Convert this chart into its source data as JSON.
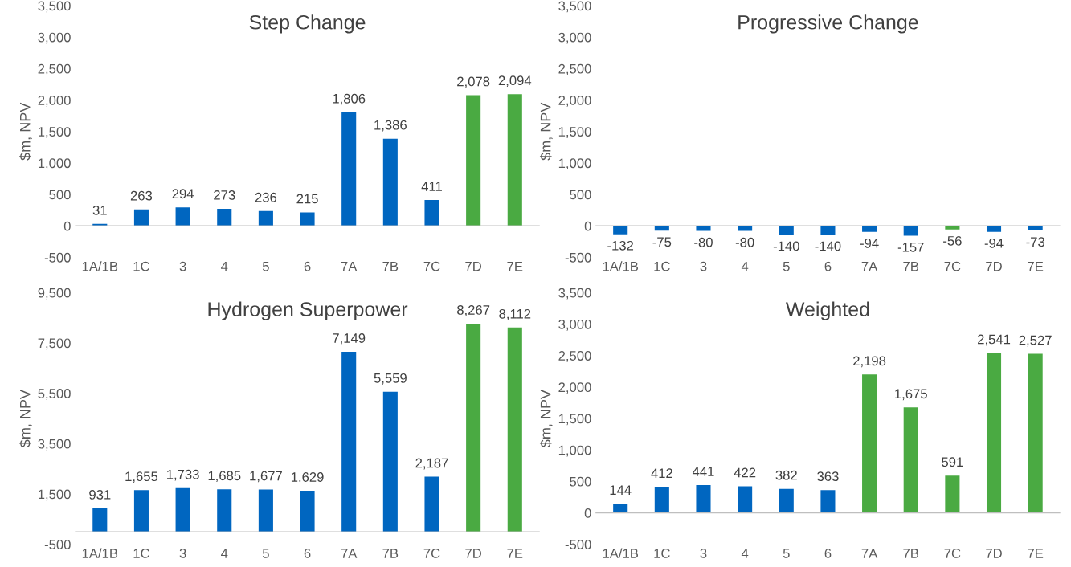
{
  "chart_data": [
    {
      "type": "bar",
      "title": "Step Change",
      "ylabel": "$m, NPV",
      "categories": [
        "1A/1B",
        "1C",
        "3",
        "4",
        "5",
        "6",
        "7A",
        "7B",
        "7C",
        "7D",
        "7E"
      ],
      "values": [
        31,
        263,
        294,
        273,
        236,
        215,
        1806,
        1386,
        411,
        2078,
        2094
      ],
      "colors": [
        "#0066c0",
        "#0066c0",
        "#0066c0",
        "#0066c0",
        "#0066c0",
        "#0066c0",
        "#0066c0",
        "#0066c0",
        "#0066c0",
        "#4aaa42",
        "#4aaa42"
      ],
      "value_labels": [
        "31",
        "263",
        "294",
        "273",
        "236",
        "215",
        "1,806",
        "1,386",
        "411",
        "2,078",
        "2,094"
      ],
      "ylim": [
        -500,
        3500
      ],
      "yticks": [
        {
          "value": -500,
          "label": "-500"
        },
        0,
        500,
        {
          "value": 1000,
          "label": "1,000"
        },
        {
          "value": 1500,
          "label": "1,500"
        },
        {
          "value": 2000,
          "label": "2,000"
        },
        {
          "value": 2500,
          "label": "2,500"
        },
        {
          "value": 3000,
          "label": "3,000"
        },
        {
          "value": 3500,
          "label": "3,500"
        }
      ]
    },
    {
      "type": "bar",
      "title": "Progressive Change",
      "ylabel": "$m, NPV",
      "categories": [
        "1A/1B",
        "1C",
        "3",
        "4",
        "5",
        "6",
        "7A",
        "7B",
        "7C",
        "7D",
        "7E"
      ],
      "values": [
        -132,
        -75,
        -80,
        -80,
        -140,
        -140,
        -94,
        -157,
        -56,
        -94,
        -73
      ],
      "colors": [
        "#0066c0",
        "#0066c0",
        "#0066c0",
        "#0066c0",
        "#0066c0",
        "#0066c0",
        "#0066c0",
        "#0066c0",
        "#4aaa42",
        "#0066c0",
        "#0066c0"
      ],
      "value_labels": [
        "-132",
        "-75",
        "-80",
        "-80",
        "-140",
        "-140",
        "-94",
        "-157",
        "-56",
        "-94",
        "-73"
      ],
      "ylim": [
        -500,
        3500
      ],
      "yticks": [
        {
          "value": -500,
          "label": "-500"
        },
        0,
        500,
        {
          "value": 1000,
          "label": "1,000"
        },
        {
          "value": 1500,
          "label": "1,500"
        },
        {
          "value": 2000,
          "label": "2,000"
        },
        {
          "value": 2500,
          "label": "2,500"
        },
        {
          "value": 3000,
          "label": "3,000"
        },
        {
          "value": 3500,
          "label": "3,500"
        }
      ]
    },
    {
      "type": "bar",
      "title": "Hydrogen Superpower",
      "ylabel": "$m, NPV",
      "categories": [
        "1A/1B",
        "1C",
        "3",
        "4",
        "5",
        "6",
        "7A",
        "7B",
        "7C",
        "7D",
        "7E"
      ],
      "values": [
        931,
        1655,
        1733,
        1685,
        1677,
        1629,
        7149,
        5559,
        2187,
        8267,
        8112
      ],
      "colors": [
        "#0066c0",
        "#0066c0",
        "#0066c0",
        "#0066c0",
        "#0066c0",
        "#0066c0",
        "#0066c0",
        "#0066c0",
        "#0066c0",
        "#4aaa42",
        "#4aaa42"
      ],
      "value_labels": [
        "931",
        "1,655",
        "1,733",
        "1,685",
        "1,677",
        "1,629",
        "7,149",
        "5,559",
        "2,187",
        "8,267",
        "8,112"
      ],
      "ylim": [
        -500,
        9500
      ],
      "yticks": [
        {
          "value": -500,
          "label": "-500"
        },
        {
          "value": 1500,
          "label": "1,500"
        },
        {
          "value": 3500,
          "label": "3,500"
        },
        {
          "value": 5500,
          "label": "5,500"
        },
        {
          "value": 7500,
          "label": "7,500"
        },
        {
          "value": 9500,
          "label": "9,500"
        }
      ]
    },
    {
      "type": "bar",
      "title": "Weighted",
      "ylabel": "$m, NPV",
      "categories": [
        "1A/1B",
        "1C",
        "3",
        "4",
        "5",
        "6",
        "7A",
        "7B",
        "7C",
        "7D",
        "7E"
      ],
      "values": [
        144,
        412,
        441,
        422,
        382,
        363,
        2198,
        1675,
        591,
        2541,
        2527
      ],
      "colors": [
        "#0066c0",
        "#0066c0",
        "#0066c0",
        "#0066c0",
        "#0066c0",
        "#0066c0",
        "#4aaa42",
        "#4aaa42",
        "#4aaa42",
        "#4aaa42",
        "#4aaa42"
      ],
      "value_labels": [
        "144",
        "412",
        "441",
        "422",
        "382",
        "363",
        "2,198",
        "1,675",
        "591",
        "2,541",
        "2,527"
      ],
      "ylim": [
        -500,
        3500
      ],
      "yticks": [
        {
          "value": -500,
          "label": "-500"
        },
        0,
        500,
        {
          "value": 1000,
          "label": "1,000"
        },
        {
          "value": 1500,
          "label": "1,500"
        },
        {
          "value": 2000,
          "label": "2,000"
        },
        {
          "value": 2500,
          "label": "2,500"
        },
        {
          "value": 3000,
          "label": "3,000"
        },
        {
          "value": 3500,
          "label": "3,500"
        }
      ]
    }
  ]
}
